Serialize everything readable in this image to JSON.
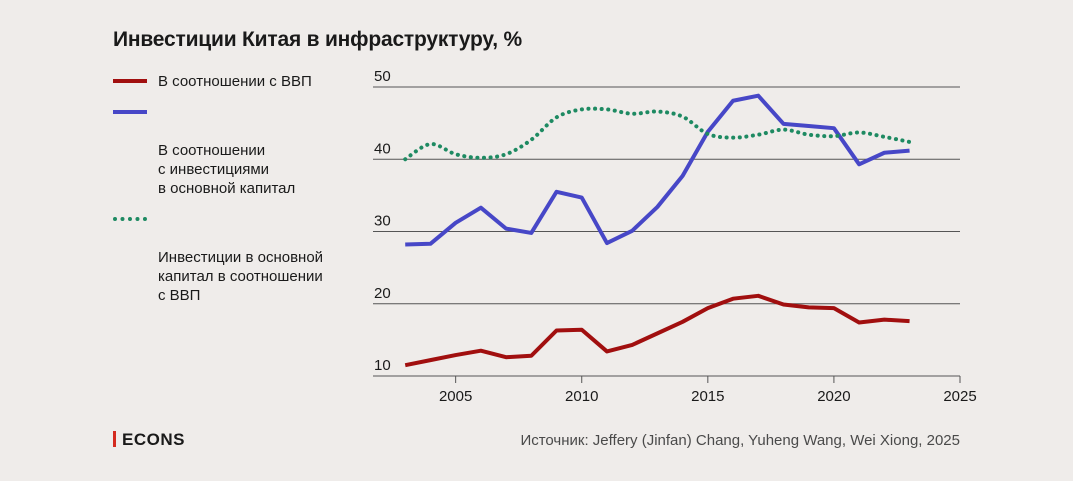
{
  "title": "Инвестиции Китая в инфраструктуру, %",
  "legend": [
    {
      "label": "В соотношении с ВВП",
      "color": "#a10f0f",
      "style": "solid"
    },
    {
      "label": "В соотношении\nс инвестициями\nв основной капитал",
      "color": "#4747c7",
      "style": "solid"
    },
    {
      "label": "Инвестиции в основной\nкапитал в соотношении\nс ВВП",
      "color": "#1e8a62",
      "style": "dotted"
    }
  ],
  "brand": "ECONS",
  "source": "Источник: Jeffery (Jinfan) Chang, Yuheng Wang, Wei Xiong, 2025",
  "chart_data": {
    "type": "line",
    "title": "Инвестиции Китая в инфраструктуру, %",
    "xlabel": "",
    "ylabel": "",
    "xlim": [
      2002,
      2025
    ],
    "ylim": [
      10,
      50
    ],
    "x_ticks": [
      2005,
      2010,
      2015,
      2020,
      2025
    ],
    "y_ticks": [
      10,
      20,
      30,
      40,
      50
    ],
    "grid": "horizontal",
    "legend_position": "top-left",
    "series": [
      {
        "name": "В соотношении с ВВП",
        "color": "#a10f0f",
        "style": "solid",
        "x": [
          2003,
          2004,
          2005,
          2006,
          2007,
          2008,
          2009,
          2010,
          2011,
          2012,
          2013,
          2014,
          2015,
          2016,
          2017,
          2018,
          2019,
          2020,
          2021,
          2022,
          2023
        ],
        "y": [
          11.5,
          12.2,
          12.9,
          13.5,
          12.6,
          12.8,
          16.3,
          16.4,
          13.4,
          14.3,
          15.9,
          17.5,
          19.4,
          20.7,
          21.1,
          19.9,
          19.5,
          19.4,
          17.4,
          17.8,
          17.6
        ]
      },
      {
        "name": "В соотношении\nс инвестициями\nв основной капитал",
        "color": "#4747c7",
        "style": "solid",
        "x": [
          2003,
          2004,
          2005,
          2006,
          2007,
          2008,
          2009,
          2010,
          2011,
          2012,
          2013,
          2014,
          2015,
          2016,
          2017,
          2018,
          2019,
          2020,
          2021,
          2022,
          2023
        ],
        "y": [
          28.2,
          28.3,
          31.2,
          33.3,
          30.4,
          29.8,
          35.5,
          34.7,
          28.4,
          30.1,
          33.4,
          37.7,
          43.8,
          48.1,
          48.8,
          44.9,
          44.6,
          44.3,
          39.3,
          40.9,
          41.2
        ]
      },
      {
        "name": "Инвестиции в основной\nкапитал в соотношении\nс ВВП",
        "color": "#1e8a62",
        "style": "dotted",
        "x": [
          2003,
          2004,
          2005,
          2006,
          2007,
          2008,
          2009,
          2010,
          2011,
          2012,
          2013,
          2014,
          2015,
          2016,
          2017,
          2018,
          2019,
          2020,
          2021,
          2022,
          2023
        ],
        "y": [
          40.0,
          42.1,
          40.7,
          40.2,
          40.7,
          42.7,
          45.8,
          46.9,
          46.9,
          46.3,
          46.6,
          45.9,
          43.5,
          43.0,
          43.4,
          44.1,
          43.4,
          43.2,
          43.7,
          43.1,
          42.4
        ]
      }
    ]
  }
}
